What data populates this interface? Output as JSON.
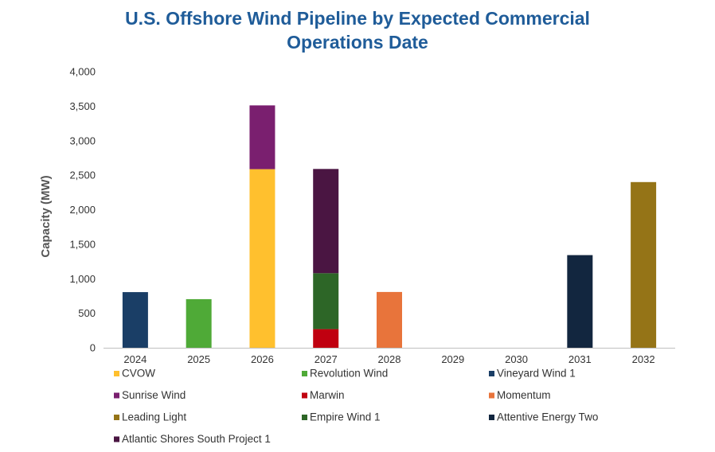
{
  "chart_data": {
    "type": "bar",
    "stacked": true,
    "title_line1": "U.S. Offshore Wind Pipeline by Expected Commercial",
    "title_line2": "Operations Date",
    "xlabel": "",
    "ylabel": "Capacity (MW)",
    "ylim": [
      0,
      4000
    ],
    "yticks": [
      0,
      500,
      1000,
      1500,
      2000,
      2500,
      3000,
      3500,
      4000
    ],
    "ytick_labels": [
      "0",
      "500",
      "1,000",
      "1,500",
      "2,000",
      "2,500",
      "3,000",
      "3,500",
      "4,000"
    ],
    "categories": [
      "2024",
      "2025",
      "2026",
      "2027",
      "2028",
      "2029",
      "2030",
      "2031",
      "2032"
    ],
    "legend_position": "bottom",
    "series": [
      {
        "name": "CVOW",
        "color": "#ffc02e",
        "values": [
          0,
          0,
          2587,
          0,
          0,
          0,
          0,
          0,
          0
        ]
      },
      {
        "name": "Revolution Wind",
        "color": "#4faa37",
        "values": [
          0,
          704,
          0,
          0,
          0,
          0,
          0,
          0,
          0
        ]
      },
      {
        "name": "Vineyard Wind 1",
        "color": "#1a3e66",
        "values": [
          806,
          0,
          0,
          0,
          0,
          0,
          0,
          0,
          0
        ]
      },
      {
        "name": "Sunrise Wind",
        "color": "#7a1f6f",
        "values": [
          0,
          0,
          924,
          0,
          0,
          0,
          0,
          0,
          0
        ]
      },
      {
        "name": "Marwin",
        "color": "#c00010",
        "values": [
          0,
          0,
          0,
          270,
          0,
          0,
          0,
          0,
          0
        ]
      },
      {
        "name": "Momentum",
        "color": "#e8743b",
        "values": [
          0,
          0,
          0,
          0,
          808,
          0,
          0,
          0,
          0
        ]
      },
      {
        "name": "Leading Light",
        "color": "#957417",
        "values": [
          0,
          0,
          0,
          0,
          0,
          0,
          0,
          0,
          2400
        ]
      },
      {
        "name": "Empire Wind 1",
        "color": "#2d6627",
        "values": [
          0,
          0,
          0,
          810,
          0,
          0,
          0,
          0,
          0
        ]
      },
      {
        "name": "Attentive Energy Two",
        "color": "#12263f",
        "values": [
          0,
          0,
          0,
          0,
          0,
          0,
          0,
          1342,
          0
        ]
      },
      {
        "name": "Atlantic Shores South Project 1",
        "color": "#4a1542",
        "values": [
          0,
          0,
          0,
          1510,
          0,
          0,
          0,
          0,
          0
        ]
      }
    ]
  }
}
